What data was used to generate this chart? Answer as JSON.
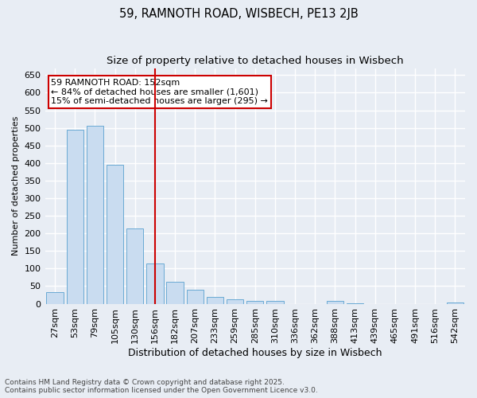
{
  "title": "59, RAMNOTH ROAD, WISBECH, PE13 2JB",
  "subtitle": "Size of property relative to detached houses in Wisbech",
  "xlabel": "Distribution of detached houses by size in Wisbech",
  "ylabel": "Number of detached properties",
  "categories": [
    "27sqm",
    "53sqm",
    "79sqm",
    "105sqm",
    "130sqm",
    "156sqm",
    "182sqm",
    "207sqm",
    "233sqm",
    "259sqm",
    "285sqm",
    "310sqm",
    "336sqm",
    "362sqm",
    "388sqm",
    "413sqm",
    "439sqm",
    "465sqm",
    "491sqm",
    "516sqm",
    "542sqm"
  ],
  "values": [
    32,
    495,
    505,
    395,
    213,
    115,
    63,
    40,
    20,
    12,
    9,
    9,
    0,
    0,
    7,
    1,
    0,
    0,
    0,
    0,
    3
  ],
  "bar_color": "#c9dcf0",
  "bar_edge_color": "#6aaad4",
  "vline_index": 5,
  "vline_color": "#cc0000",
  "annotation_title": "59 RAMNOTH ROAD: 152sqm",
  "annotation_line1": "← 84% of detached houses are smaller (1,601)",
  "annotation_line2": "15% of semi-detached houses are larger (295) →",
  "annotation_box_color": "#ffffff",
  "annotation_box_edge_color": "#cc0000",
  "ylim": [
    0,
    670
  ],
  "yticks": [
    0,
    50,
    100,
    150,
    200,
    250,
    300,
    350,
    400,
    450,
    500,
    550,
    600,
    650
  ],
  "background_color": "#e8edf4",
  "grid_color": "#ffffff",
  "footer_line1": "Contains HM Land Registry data © Crown copyright and database right 2025.",
  "footer_line2": "Contains public sector information licensed under the Open Government Licence v3.0.",
  "title_fontsize": 10.5,
  "subtitle_fontsize": 9.5,
  "tick_fontsize": 8,
  "xlabel_fontsize": 9,
  "ylabel_fontsize": 8,
  "footer_fontsize": 6.5,
  "annotation_fontsize": 8
}
